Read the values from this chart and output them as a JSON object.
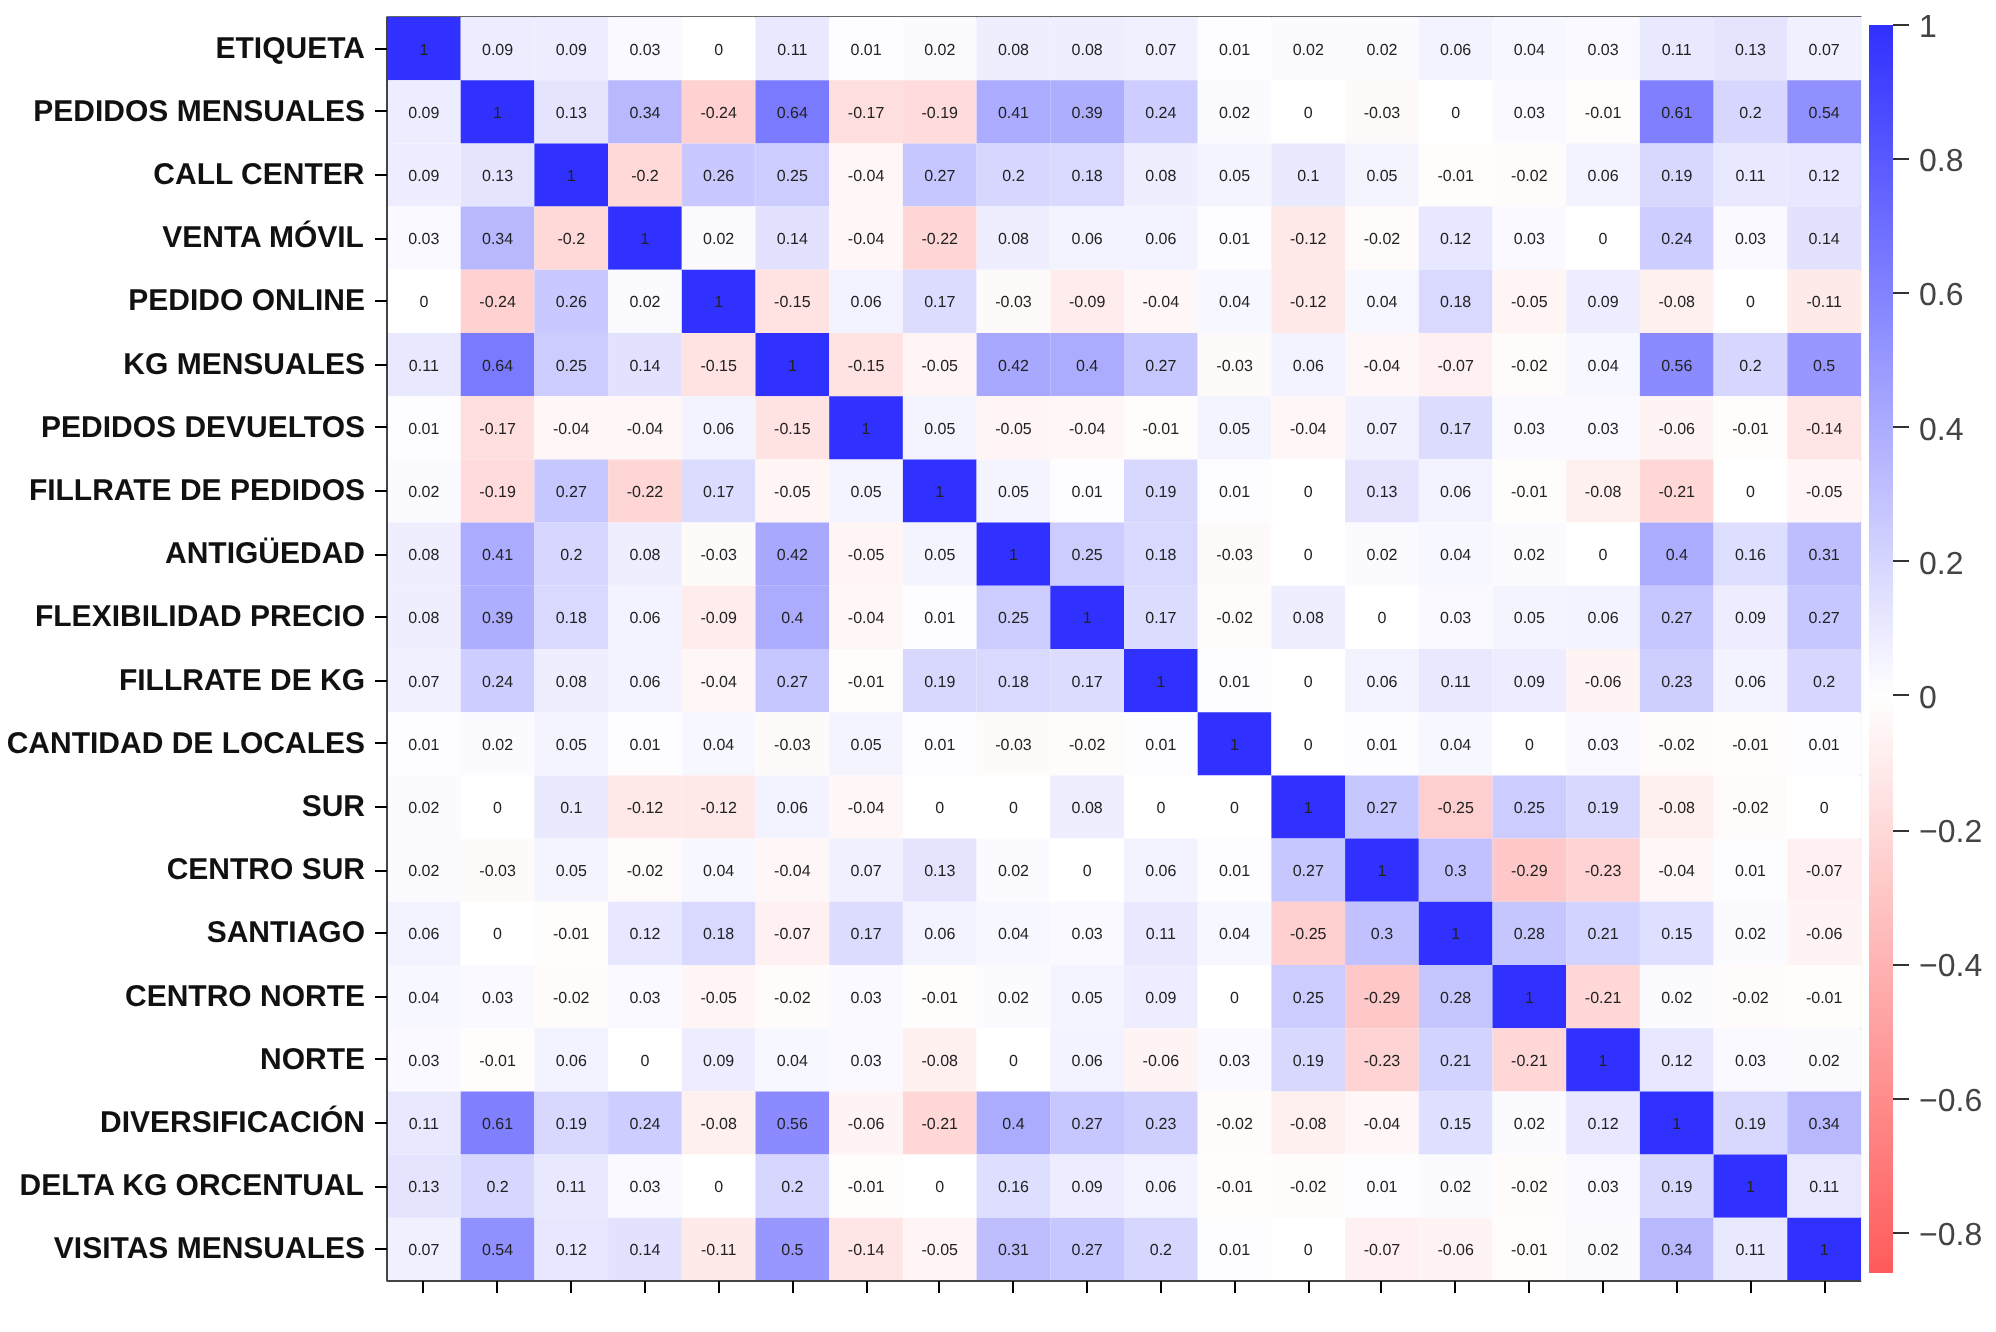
{
  "chart_data": {
    "type": "heatmap",
    "categories": [
      null,
      null,
      null,
      null,
      null,
      null,
      null,
      null,
      null,
      null,
      null,
      null,
      null,
      null,
      null,
      null,
      null,
      null,
      null,
      null
    ],
    "y_categories": [
      "ETIQUETA",
      "PEDIDOS MENSUALES",
      "CALL CENTER",
      "VENTA MÓVIL",
      "PEDIDO ONLINE",
      "KG MENSUALES",
      "PEDIDOS DEVUELTOS",
      "FILLRATE DE PEDIDOS",
      "ANTIGÜEDAD",
      "FLEXIBILIDAD PRECIO",
      "FILLRATE DE KG",
      "CANTIDAD DE LOCALES",
      "SUR",
      "CENTRO SUR",
      "SANTIAGO",
      "CENTRO NORTE",
      "NORTE",
      "DIVERSIFICACIÓN",
      "DELTA KG ORCENTUAL",
      "VISITAS MENSUALES"
    ],
    "cells": [
      [
        1,
        0.09,
        0.09,
        0.03,
        0,
        0.11,
        0.01,
        0.02,
        0.08,
        0.08,
        0.07,
        0.01,
        0.02,
        0.02,
        0.06,
        0.04,
        0.03,
        0.11,
        0.13,
        0.07
      ],
      [
        0.09,
        1,
        0.13,
        0.34,
        -0.24,
        0.64,
        -0.17,
        -0.19,
        0.41,
        0.39,
        0.24,
        0.02,
        0,
        -0.03,
        0,
        0.03,
        -0.01,
        0.61,
        0.2,
        0.54
      ],
      [
        0.09,
        0.13,
        1,
        -0.2,
        0.26,
        0.25,
        -0.04,
        0.27,
        0.2,
        0.18,
        0.08,
        0.05,
        0.1,
        0.05,
        -0.01,
        -0.02,
        0.06,
        0.19,
        0.11,
        0.12
      ],
      [
        0.03,
        0.34,
        -0.2,
        1,
        0.02,
        0.14,
        -0.04,
        -0.22,
        0.08,
        0.06,
        0.06,
        0.01,
        -0.12,
        -0.02,
        0.12,
        0.03,
        0,
        0.24,
        0.03,
        0.14
      ],
      [
        0,
        -0.24,
        0.26,
        0.02,
        1,
        -0.15,
        0.06,
        0.17,
        -0.03,
        -0.09,
        -0.04,
        0.04,
        -0.12,
        0.04,
        0.18,
        -0.05,
        0.09,
        -0.08,
        0,
        -0.11
      ],
      [
        0.11,
        0.64,
        0.25,
        0.14,
        -0.15,
        1,
        -0.15,
        -0.05,
        0.42,
        0.4,
        0.27,
        -0.03,
        0.06,
        -0.04,
        -0.07,
        -0.02,
        0.04,
        0.56,
        0.2,
        0.5
      ],
      [
        0.01,
        -0.17,
        -0.04,
        -0.04,
        0.06,
        -0.15,
        1,
        0.05,
        -0.05,
        -0.04,
        -0.01,
        0.05,
        -0.04,
        0.07,
        0.17,
        0.03,
        0.03,
        -0.06,
        -0.01,
        -0.14
      ],
      [
        0.02,
        -0.19,
        0.27,
        -0.22,
        0.17,
        -0.05,
        0.05,
        1,
        0.05,
        0.01,
        0.19,
        0.01,
        0,
        0.13,
        0.06,
        -0.01,
        -0.08,
        -0.21,
        0,
        -0.05
      ],
      [
        0.08,
        0.41,
        0.2,
        0.08,
        -0.03,
        0.42,
        -0.05,
        0.05,
        1,
        0.25,
        0.18,
        -0.03,
        0,
        0.02,
        0.04,
        0.02,
        0,
        0.4,
        0.16,
        0.31
      ],
      [
        0.08,
        0.39,
        0.18,
        0.06,
        -0.09,
        0.4,
        -0.04,
        0.01,
        0.25,
        1,
        0.17,
        -0.02,
        0.08,
        0,
        0.03,
        0.05,
        0.06,
        0.27,
        0.09,
        0.27
      ],
      [
        0.07,
        0.24,
        0.08,
        0.06,
        -0.04,
        0.27,
        -0.01,
        0.19,
        0.18,
        0.17,
        1,
        0.01,
        0,
        0.06,
        0.11,
        0.09,
        -0.06,
        0.23,
        0.06,
        0.2
      ],
      [
        0.01,
        0.02,
        0.05,
        0.01,
        0.04,
        -0.03,
        0.05,
        0.01,
        -0.03,
        -0.02,
        0.01,
        1,
        0,
        0.01,
        0.04,
        0,
        0.03,
        -0.02,
        -0.01,
        0.01
      ],
      [
        0.02,
        0,
        0.1,
        -0.12,
        -0.12,
        0.06,
        -0.04,
        0,
        0,
        0.08,
        0,
        0,
        1,
        0.27,
        -0.25,
        0.25,
        0.19,
        -0.08,
        -0.02,
        0
      ],
      [
        0.02,
        -0.03,
        0.05,
        -0.02,
        0.04,
        -0.04,
        0.07,
        0.13,
        0.02,
        0,
        0.06,
        0.01,
        0.27,
        1,
        0.3,
        -0.29,
        -0.23,
        -0.04,
        0.01,
        -0.07
      ],
      [
        0.06,
        0,
        -0.01,
        0.12,
        0.18,
        -0.07,
        0.17,
        0.06,
        0.04,
        0.03,
        0.11,
        0.04,
        -0.25,
        0.3,
        1,
        0.28,
        0.21,
        0.15,
        0.02,
        -0.06
      ],
      [
        0.04,
        0.03,
        -0.02,
        0.03,
        -0.05,
        -0.02,
        0.03,
        -0.01,
        0.02,
        0.05,
        0.09,
        0,
        0.25,
        -0.29,
        0.28,
        1,
        -0.21,
        0.02,
        -0.02,
        -0.01
      ],
      [
        0.03,
        -0.01,
        0.06,
        0,
        0.09,
        0.04,
        0.03,
        -0.08,
        0,
        0.06,
        -0.06,
        0.03,
        0.19,
        -0.23,
        0.21,
        -0.21,
        1,
        0.12,
        0.03,
        0.02
      ],
      [
        0.11,
        0.61,
        0.19,
        0.24,
        -0.08,
        0.56,
        -0.06,
        -0.21,
        0.4,
        0.27,
        0.23,
        -0.02,
        -0.08,
        -0.04,
        0.15,
        0.02,
        0.12,
        1,
        0.19,
        0.34
      ],
      [
        0.13,
        0.2,
        0.11,
        0.03,
        0,
        0.2,
        -0.01,
        0,
        0.16,
        0.09,
        0.06,
        -0.01,
        -0.02,
        0.01,
        0.02,
        -0.02,
        0.03,
        0.19,
        1,
        0.11
      ],
      [
        0.07,
        0.54,
        0.12,
        0.14,
        -0.11,
        0.5,
        -0.14,
        -0.05,
        0.31,
        0.27,
        0.2,
        0.01,
        0,
        -0.07,
        -0.06,
        -0.01,
        0.02,
        0.34,
        0.11,
        1
      ]
    ],
    "clim": [
      -0.86,
      1
    ],
    "cticks": [
      -0.8,
      -0.6,
      -0.4,
      -0.2,
      0,
      0.2,
      0.4,
      0.6,
      0.8,
      1
    ],
    "data_labels": true,
    "tick_labels": "y"
  }
}
